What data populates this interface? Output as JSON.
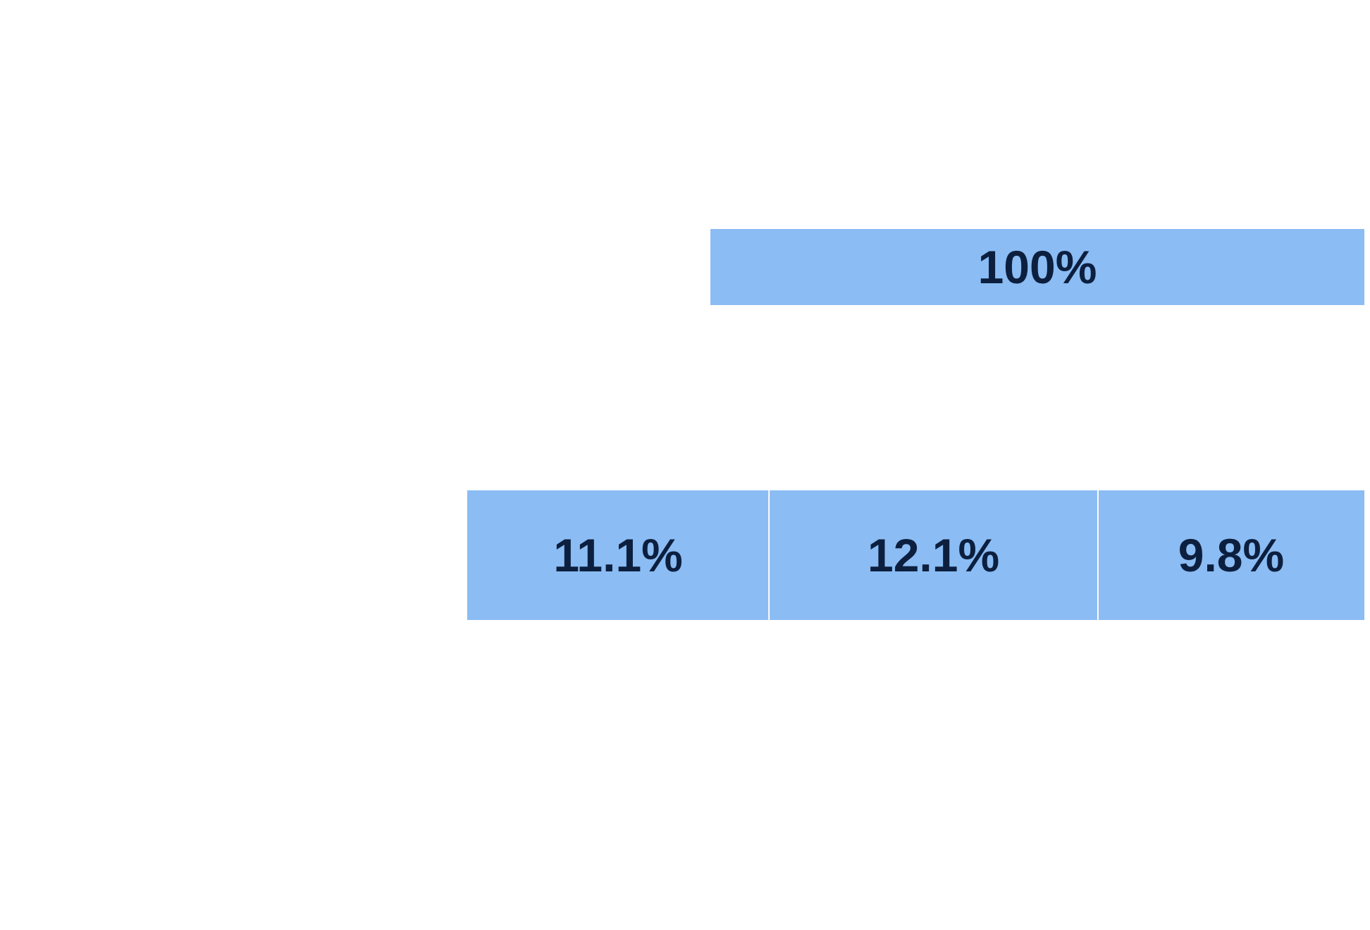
{
  "chart_data": {
    "type": "bar",
    "title": "",
    "xlabel": "",
    "ylabel": "",
    "legend": false,
    "grid": false,
    "rows": [
      {
        "segments": [
          {
            "label": "100%",
            "value": 100
          }
        ]
      },
      {
        "segments": [
          {
            "label": "11.1%",
            "value": 11.1
          },
          {
            "label": "12.1%",
            "value": 12.1
          },
          {
            "label": "9.8%",
            "value": 9.8
          }
        ]
      }
    ],
    "colors": {
      "bar_fill": "#8bbcf3",
      "label_text": "#0c1f3f",
      "segment_divider": "#ffffff"
    }
  }
}
